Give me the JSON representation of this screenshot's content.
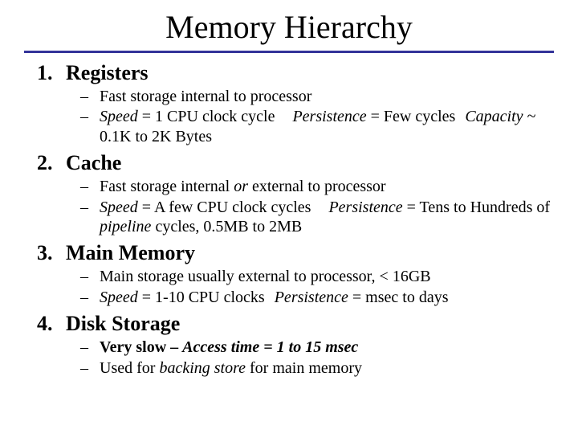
{
  "title": "Memory Hierarchy",
  "rule_color": "#333399",
  "items": [
    {
      "heading": "Registers",
      "bullets": [
        {
          "html": "Fast storage internal to processor"
        },
        {
          "html": "<span class=\"ital\">Speed</span> = 1 CPU clock cycle<span class=\"gap\"></span><span class=\"ital\">Persistence</span> = Few cycles<span class=\"gap2\"></span><span class=\"ital\">Capacity</span> ~ 0.1K to 2K Bytes"
        }
      ]
    },
    {
      "heading": "Cache",
      "bullets": [
        {
          "html": "Fast storage internal <span class=\"ital\">or</span> external to processor"
        },
        {
          "html": "<span class=\"ital\">Speed</span> = A few CPU clock cycles<span class=\"gap\"></span><span class=\"ital\">Persistence</span> = Tens to Hundreds of <span class=\"ital\">pipeline</span> cycles, 0.5MB to 2MB"
        }
      ]
    },
    {
      "heading": "Main Memory",
      "bullets": [
        {
          "html": "Main storage usually external to processor, &lt; 16GB"
        },
        {
          "html": "<span class=\"ital\">Speed</span> = 1-10 CPU clocks<span class=\"gap2\"></span><span class=\"ital\">Persistence</span> = msec to days"
        }
      ]
    },
    {
      "heading": "Disk Storage",
      "bullets": [
        {
          "html": "<span class=\"bold\">Very slow – <span class=\"ital\">Access time = 1 to 15 msec</span></span>"
        },
        {
          "html": "Used for <span class=\"ital\">backing store</span> for main memory"
        }
      ]
    }
  ]
}
